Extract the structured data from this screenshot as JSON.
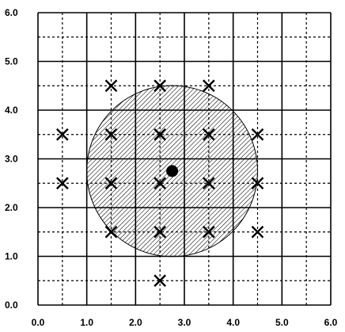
{
  "chart_data": {
    "type": "scatter",
    "xlim": [
      0,
      6
    ],
    "ylim": [
      0,
      6
    ],
    "x_ticks": [
      "0.0",
      "1.0",
      "2.0",
      "3.0",
      "4.0",
      "5.0",
      "6.0"
    ],
    "y_ticks": [
      "0.0",
      "1.0",
      "2.0",
      "3.0",
      "4.0",
      "5.0",
      "6.0"
    ],
    "grid": {
      "major_step": 1.0,
      "minor_step": 0.5,
      "major_style": "solid",
      "minor_style": "dashed"
    },
    "x_marker_points": [
      [
        1.5,
        4.5
      ],
      [
        2.5,
        4.5
      ],
      [
        3.5,
        4.5
      ],
      [
        0.5,
        3.5
      ],
      [
        1.5,
        3.5
      ],
      [
        2.5,
        3.5
      ],
      [
        3.5,
        3.5
      ],
      [
        4.5,
        3.5
      ],
      [
        0.5,
        2.5
      ],
      [
        1.5,
        2.5
      ],
      [
        2.5,
        2.5
      ],
      [
        3.5,
        2.5
      ],
      [
        4.5,
        2.5
      ],
      [
        1.5,
        1.5
      ],
      [
        2.5,
        1.5
      ],
      [
        3.5,
        1.5
      ],
      [
        4.5,
        1.5
      ],
      [
        2.5,
        0.5
      ]
    ],
    "center_point": [
      2.75,
      2.75
    ],
    "circle": {
      "center": [
        2.75,
        2.75
      ],
      "radius": 1.75,
      "fill": "hatched"
    },
    "colors": {
      "grid": "#000000",
      "markers": "#000000",
      "hatch": "#000000",
      "background": "#ffffff"
    }
  }
}
